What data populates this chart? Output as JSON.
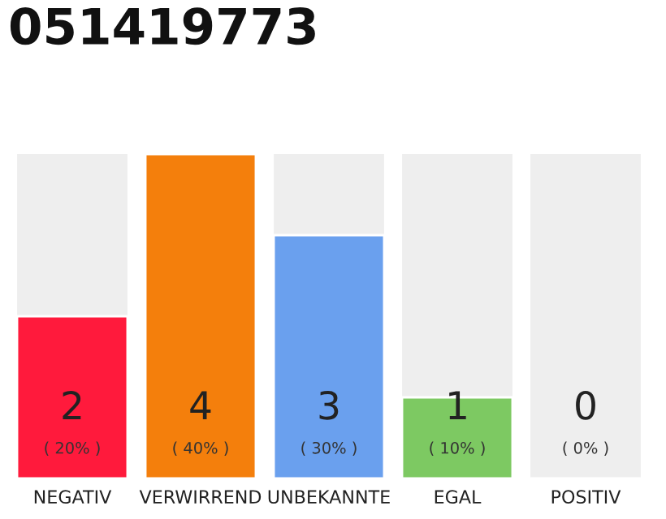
{
  "chart_data": {
    "type": "bar",
    "title": "051419773",
    "categories": [
      "NEGATIV",
      "VERWIRREND",
      "UNBEKANNTE",
      "EGAL",
      "POSITIV"
    ],
    "values": [
      2,
      4,
      3,
      1,
      0
    ],
    "colors": [
      "#ff1a3c",
      "#f47f0c",
      "#6aa0ee",
      "#7dc962",
      null
    ],
    "tick_labels": "x",
    "value_labels": [
      "2",
      "4",
      "3",
      "1",
      "0"
    ],
    "annotations": [
      "( 20% )",
      "( 40% )",
      "( 30% )",
      "( 10% )",
      "( 0% )"
    ]
  }
}
